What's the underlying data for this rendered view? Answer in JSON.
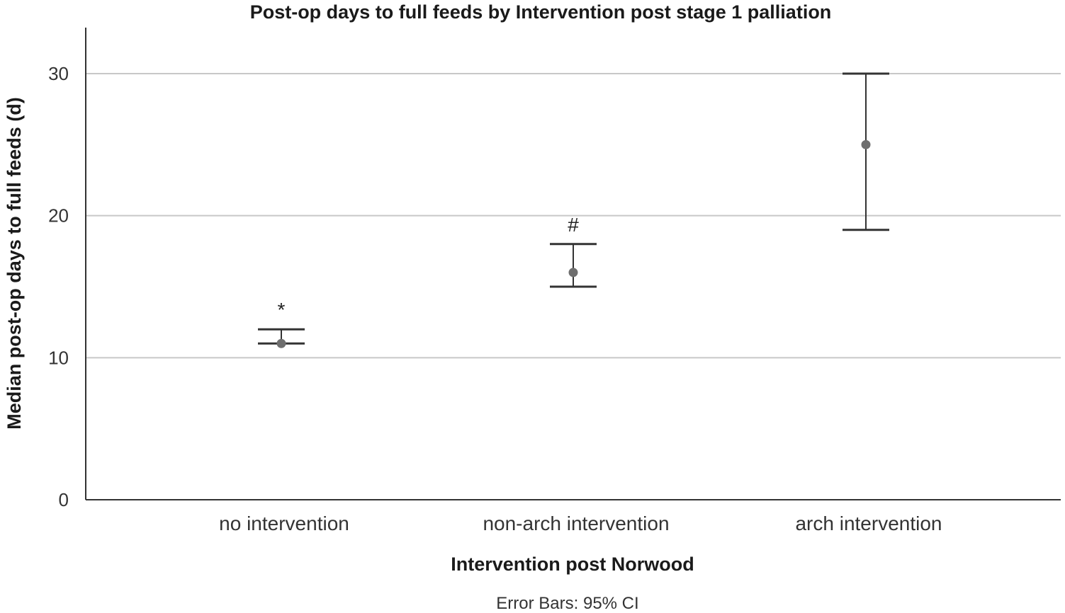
{
  "chart_data": {
    "type": "scatter",
    "title": "Post-op days to full feeds by Intervention post stage 1 palliation",
    "xlabel": "Intervention post Norwood",
    "ylabel": "Median post-op days to full feeds (d)",
    "ylim": [
      0,
      33
    ],
    "yticks": [
      0,
      10,
      20,
      30
    ],
    "grid": true,
    "categories": [
      "no intervention",
      "non-arch intervention",
      "arch intervention"
    ],
    "values": [
      11,
      16,
      25
    ],
    "ci_lower": [
      11,
      15,
      19
    ],
    "ci_upper": [
      12,
      18,
      30
    ],
    "annotations": [
      "*",
      "#",
      ""
    ],
    "footnote": "Error Bars: 95% CI",
    "colors": {
      "axis": "#333333",
      "grid": "#c8c8c8",
      "marker": "#6e6e6e",
      "errorbar": "#333333"
    }
  }
}
